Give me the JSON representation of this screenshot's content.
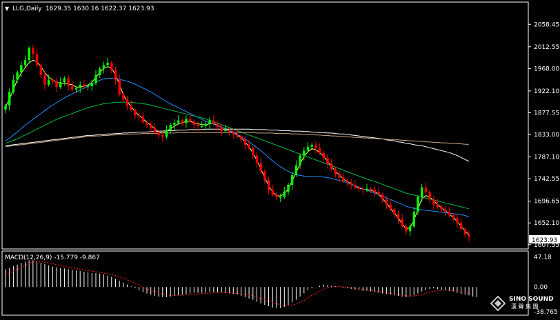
{
  "header": {
    "symbol_label": "LLG,Daily",
    "ohlc_text": "1629.35 1630.16 1622.37 1623.93"
  },
  "macd_panel": {
    "label": "MACD(12,26,9) -15.779 -9.867"
  },
  "current_price_label": "1623.93",
  "watermark": {
    "brand_en": "SINO SOUND",
    "brand_cn": "漢 聲 集 團"
  },
  "colors": {
    "background": "#000000",
    "grid": "#ffffff",
    "bull_candle": "#00ff00",
    "bear_candle": "#ff0000",
    "ma5": "#ffff80",
    "ma20": "#1e90ff",
    "ma50": "#00c040",
    "ma100": "#ffffff",
    "ma200": "#c8a880",
    "macd_hist": "#ffffff",
    "macd_signal": "#ff2020"
  },
  "chart_data": [
    {
      "type": "candlestick",
      "title": "LLG,Daily",
      "ylim": [
        1603,
        2080
      ],
      "y_ticks": [
        "2058.45",
        "2012.55",
        "1968.00",
        "1922.10",
        "1877.55",
        "1833.00",
        "1787.10",
        "1742.55",
        "1696.65",
        "1652.10",
        "1607.55"
      ],
      "close": [
        1892,
        1920,
        1945,
        1960,
        1975,
        1985,
        2010,
        1998,
        1975,
        1955,
        1935,
        1945,
        1942,
        1930,
        1940,
        1948,
        1932,
        1925,
        1928,
        1935,
        1930,
        1932,
        1938,
        1955,
        1968,
        1975,
        1980,
        1965,
        1945,
        1915,
        1905,
        1892,
        1883,
        1872,
        1870,
        1858,
        1853,
        1847,
        1838,
        1832,
        1828,
        1842,
        1853,
        1857,
        1862,
        1857,
        1865,
        1860,
        1853,
        1850,
        1850,
        1855,
        1862,
        1855,
        1848,
        1840,
        1842,
        1838,
        1834,
        1829,
        1823,
        1812,
        1805,
        1790,
        1775,
        1758,
        1740,
        1720,
        1710,
        1705,
        1705,
        1716,
        1730,
        1750,
        1770,
        1790,
        1800,
        1808,
        1812,
        1805,
        1795,
        1785,
        1773,
        1762,
        1752,
        1745,
        1738,
        1735,
        1730,
        1725,
        1722,
        1720,
        1722,
        1720,
        1715,
        1710,
        1700,
        1690,
        1680,
        1670,
        1660,
        1645,
        1635,
        1645,
        1675,
        1705,
        1725,
        1715,
        1700,
        1690,
        1685,
        1680,
        1675,
        1668,
        1662,
        1652,
        1640,
        1629,
        1624
      ],
      "series": [
        {
          "name": "MA5",
          "values": [
            1890,
            1905,
            1925,
            1945,
            1958,
            1970,
            1980,
            1985,
            1982,
            1972,
            1960,
            1950,
            1945,
            1940,
            1938,
            1938,
            1936,
            1935,
            1930,
            1930,
            1932,
            1934,
            1940,
            1950,
            1960,
            1968,
            1972,
            1968,
            1955,
            1935,
            1915,
            1900,
            1890,
            1880,
            1872,
            1865,
            1858,
            1852,
            1845,
            1838,
            1836,
            1840,
            1845,
            1850,
            1855,
            1857,
            1860,
            1860,
            1857,
            1855,
            1853,
            1853,
            1855,
            1855,
            1852,
            1848,
            1845,
            1840,
            1836,
            1832,
            1826,
            1818,
            1808,
            1795,
            1780,
            1762,
            1745,
            1728,
            1715,
            1708,
            1707,
            1712,
            1722,
            1738,
            1755,
            1773,
            1788,
            1798,
            1804,
            1802,
            1796,
            1788,
            1778,
            1768,
            1758,
            1750,
            1742,
            1737,
            1732,
            1727,
            1723,
            1721,
            1720,
            1719,
            1716,
            1711,
            1702,
            1692,
            1682,
            1672,
            1662,
            1650,
            1640,
            1642,
            1658,
            1680,
            1702,
            1708,
            1705,
            1698,
            1690,
            1683,
            1677,
            1670,
            1663,
            1655,
            1645,
            1636,
            1628
          ]
        },
        {
          "name": "MA20",
          "values": [
            1820,
            1825,
            1832,
            1838,
            1845,
            1852,
            1858,
            1864,
            1870,
            1876,
            1882,
            1888,
            1893,
            1898,
            1903,
            1908,
            1912,
            1916,
            1920,
            1924,
            1928,
            1932,
            1936,
            1940,
            1944,
            1947,
            1948,
            1948,
            1947,
            1946,
            1944,
            1942,
            1939,
            1936,
            1932,
            1928,
            1924,
            1920,
            1915,
            1910,
            1905,
            1900,
            1896,
            1892,
            1888,
            1884,
            1880,
            1876,
            1872,
            1868,
            1864,
            1860,
            1857,
            1854,
            1851,
            1848,
            1845,
            1842,
            1838,
            1834,
            1829,
            1824,
            1818,
            1812,
            1806,
            1800,
            1793,
            1786,
            1779,
            1773,
            1767,
            1762,
            1758,
            1754,
            1751,
            1749,
            1748,
            1747,
            1747,
            1747,
            1747,
            1746,
            1745,
            1743,
            1741,
            1739,
            1737,
            1734,
            1731,
            1728,
            1725,
            1722,
            1719,
            1716,
            1713,
            1710,
            1707,
            1703,
            1700,
            1697,
            1693,
            1690,
            1686,
            1684,
            1682,
            1680,
            1679,
            1678,
            1677,
            1676,
            1675,
            1674,
            1673,
            1672,
            1671,
            1670,
            1669,
            1667,
            1665
          ]
        },
        {
          "name": "MA50",
          "values": [
            1815,
            1818,
            1821,
            1824,
            1828,
            1832,
            1836,
            1840,
            1844,
            1848,
            1852,
            1856,
            1860,
            1864,
            1867,
            1870,
            1873,
            1876,
            1879,
            1882,
            1885,
            1888,
            1890,
            1892,
            1894,
            1896,
            1897,
            1898,
            1899,
            1899,
            1899,
            1899,
            1899,
            1898,
            1897,
            1896,
            1895,
            1893,
            1891,
            1889,
            1887,
            1885,
            1883,
            1881,
            1879,
            1877,
            1875,
            1873,
            1871,
            1869,
            1867,
            1865,
            1862,
            1859,
            1856,
            1853,
            1850,
            1847,
            1844,
            1841,
            1838,
            1835,
            1832,
            1829,
            1826,
            1823,
            1820,
            1817,
            1814,
            1811,
            1808,
            1805,
            1802,
            1799,
            1796,
            1793,
            1790,
            1787,
            1784,
            1781,
            1778,
            1775,
            1772,
            1769,
            1766,
            1763,
            1760,
            1757,
            1754,
            1751,
            1748,
            1745,
            1742,
            1739,
            1737,
            1734,
            1731,
            1728,
            1725,
            1722,
            1719,
            1716,
            1713,
            1711,
            1709,
            1707,
            1705,
            1703,
            1701,
            1699,
            1697,
            1695,
            1693,
            1691,
            1689,
            1687,
            1685,
            1683,
            1681
          ]
        },
        {
          "name": "MA100",
          "values": [
            1810,
            1811,
            1812,
            1813,
            1814,
            1815,
            1816,
            1817,
            1818,
            1819,
            1820,
            1821,
            1822,
            1823,
            1824,
            1825,
            1826,
            1827,
            1828,
            1829,
            1830,
            1831,
            1831,
            1832,
            1833,
            1833,
            1834,
            1834,
            1835,
            1835,
            1836,
            1836,
            1837,
            1837,
            1838,
            1838,
            1838,
            1839,
            1839,
            1840,
            1840,
            1841,
            1841,
            1841,
            1842,
            1842,
            1842,
            1843,
            1843,
            1843,
            1843,
            1844,
            1844,
            1844,
            1844,
            1844,
            1844,
            1844,
            1844,
            1844,
            1844,
            1844,
            1844,
            1843,
            1843,
            1843,
            1843,
            1842,
            1842,
            1842,
            1841,
            1841,
            1841,
            1840,
            1840,
            1840,
            1839,
            1839,
            1838,
            1838,
            1837,
            1837,
            1836,
            1836,
            1835,
            1834,
            1834,
            1833,
            1832,
            1831,
            1830,
            1829,
            1828,
            1827,
            1826,
            1825,
            1824,
            1822,
            1821,
            1820,
            1818,
            1817,
            1815,
            1814,
            1812,
            1811,
            1810,
            1808,
            1806,
            1804,
            1802,
            1800,
            1798,
            1796,
            1793,
            1790,
            1786,
            1782,
            1778
          ]
        },
        {
          "name": "MA200",
          "values": [
            1808,
            1809,
            1810,
            1811,
            1812,
            1813,
            1814,
            1815,
            1816,
            1817,
            1818,
            1819,
            1820,
            1821,
            1822,
            1823,
            1824,
            1825,
            1826,
            1827,
            1828,
            1829,
            1829,
            1830,
            1830,
            1831,
            1831,
            1832,
            1832,
            1833,
            1833,
            1833,
            1834,
            1834,
            1834,
            1835,
            1835,
            1835,
            1835,
            1836,
            1836,
            1836,
            1836,
            1836,
            1837,
            1837,
            1837,
            1837,
            1837,
            1837,
            1837,
            1837,
            1837,
            1837,
            1837,
            1837,
            1837,
            1837,
            1837,
            1837,
            1837,
            1837,
            1837,
            1837,
            1836,
            1836,
            1836,
            1836,
            1836,
            1835,
            1835,
            1835,
            1835,
            1834,
            1834,
            1834,
            1833,
            1833,
            1833,
            1832,
            1832,
            1831,
            1831,
            1830,
            1830,
            1829,
            1829,
            1828,
            1828,
            1827,
            1827,
            1826,
            1826,
            1825,
            1825,
            1824,
            1824,
            1823,
            1823,
            1822,
            1822,
            1821,
            1821,
            1820,
            1820,
            1819,
            1819,
            1818,
            1818,
            1817,
            1817,
            1816,
            1816,
            1815,
            1815,
            1814,
            1814,
            1813,
            1813
          ]
        }
      ]
    },
    {
      "type": "bar",
      "title": "MACD(12,26,9) -15.779 -9.867",
      "ylim": [
        -42,
        50
      ],
      "y_ticks": [
        "47.18",
        "0.00",
        "-38.765"
      ],
      "series": [
        {
          "name": "MACD",
          "values": [
            28,
            30,
            33,
            35,
            38,
            40,
            42,
            42,
            40,
            38,
            36,
            34,
            32,
            31,
            30,
            29,
            28,
            27,
            26,
            25,
            24,
            23,
            22,
            22,
            21,
            20,
            18,
            16,
            13,
            10,
            7,
            4,
            1,
            -2,
            -5,
            -8,
            -10,
            -12,
            -14,
            -15,
            -16,
            -16,
            -15,
            -14,
            -13,
            -12,
            -11,
            -10,
            -9,
            -9,
            -9,
            -9,
            -8,
            -8,
            -8,
            -8,
            -9,
            -10,
            -11,
            -12,
            -14,
            -16,
            -18,
            -20,
            -23,
            -26,
            -28,
            -30,
            -32,
            -33,
            -33,
            -31,
            -28,
            -24,
            -20,
            -15,
            -10,
            -5,
            -2,
            0,
            2,
            4,
            3,
            2,
            1,
            0,
            -1,
            -2,
            -3,
            -4,
            -5,
            -6,
            -6,
            -7,
            -8,
            -9,
            -10,
            -11,
            -12,
            -13,
            -14,
            -15,
            -16,
            -15,
            -13,
            -10,
            -7,
            -5,
            -3,
            -2,
            -3,
            -4,
            -5,
            -6,
            -7,
            -9,
            -11,
            -12,
            -13,
            -15,
            -16
          ]
        },
        {
          "name": "Signal",
          "values": [
            20,
            22,
            25,
            28,
            31,
            34,
            37,
            39,
            40,
            40,
            39,
            38,
            37,
            35,
            34,
            32,
            31,
            30,
            29,
            28,
            27,
            26,
            25,
            24,
            23,
            22,
            21,
            20,
            18,
            16,
            14,
            11,
            9,
            6,
            3,
            0,
            -3,
            -5,
            -7,
            -9,
            -11,
            -12,
            -13,
            -13,
            -13,
            -13,
            -12,
            -12,
            -11,
            -11,
            -10,
            -10,
            -10,
            -9,
            -9,
            -9,
            -9,
            -9,
            -10,
            -10,
            -11,
            -12,
            -13,
            -14,
            -16,
            -18,
            -20,
            -22,
            -24,
            -26,
            -28,
            -29,
            -29,
            -28,
            -27,
            -24,
            -21,
            -17,
            -13,
            -10,
            -6,
            -3,
            -1,
            0,
            1,
            1,
            0,
            0,
            -1,
            -2,
            -3,
            -4,
            -4,
            -5,
            -6,
            -7,
            -8,
            -9,
            -10,
            -11,
            -12,
            -13,
            -14,
            -14,
            -14,
            -13,
            -12,
            -10,
            -8,
            -7,
            -6,
            -5,
            -5,
            -5,
            -6,
            -7,
            -8,
            -9,
            -10
          ]
        }
      ]
    }
  ]
}
